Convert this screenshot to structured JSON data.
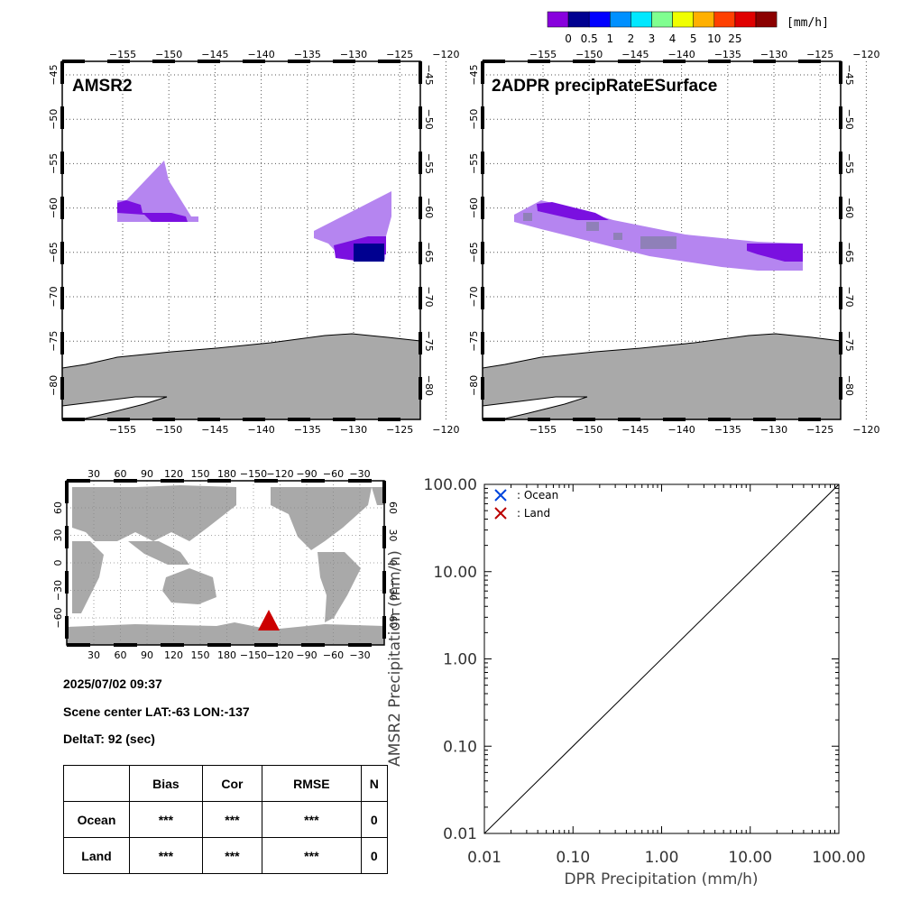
{
  "colorbar": {
    "unit": "[mm/h]",
    "colors": [
      "#8800dd",
      "#000090",
      "#0000ff",
      "#0090ff",
      "#00e8ff",
      "#80ff90",
      "#f0ff00",
      "#ffb000",
      "#ff4000",
      "#e00000",
      "#8b0000"
    ],
    "labels": [
      "0",
      "0.5",
      "1",
      "2",
      "3",
      "4",
      "5",
      "10",
      "25"
    ]
  },
  "maps": {
    "lon_ticks": [
      "−155",
      "−150",
      "−145",
      "−140",
      "−135",
      "−130",
      "−125",
      "−120"
    ],
    "lat_ticks": [
      "−45",
      "−50",
      "−55",
      "−60",
      "−65",
      "−70",
      "−75",
      "−80"
    ],
    "left_title": "AMSR2",
    "right_title": "2ADPR precipRateESurface"
  },
  "locator": {
    "top_ticks": [
      "30",
      "60",
      "90",
      "120",
      "150",
      "180",
      "−150",
      "−120",
      "−90",
      "−60",
      "−30"
    ],
    "bottom_ticks": [
      "30",
      "60",
      "90",
      "120",
      "150",
      "180",
      "−150",
      "−120",
      "−90",
      "−60",
      "−30"
    ],
    "lat_ticks": [
      "60",
      "30",
      "0",
      "−30",
      "−60"
    ],
    "marker_color": "#cc0000"
  },
  "info": {
    "datetime": "2025/07/02 09:37",
    "scene_center": "Scene center LAT:-63   LON:-137",
    "delta_t": "DeltaT:   92 (sec)"
  },
  "stats": {
    "headers": [
      "Bias",
      "Cor",
      "RMSE",
      "N"
    ],
    "rows": [
      {
        "label": "Ocean",
        "bias": "***",
        "cor": "***",
        "rmse": "***",
        "n": "0"
      },
      {
        "label": "Land",
        "bias": "***",
        "cor": "***",
        "rmse": "***",
        "n": "0"
      }
    ]
  },
  "chart_data": {
    "type": "scatter",
    "xlabel": "DPR Precipitation (mm/h)",
    "ylabel": "AMSR2 Precipitation (mm/h)",
    "xscale": "log",
    "yscale": "log",
    "xlim": [
      0.01,
      100
    ],
    "ylim": [
      0.01,
      100
    ],
    "x_ticks": [
      "0.01",
      "0.10",
      "1.00",
      "10.00",
      "100.00"
    ],
    "y_ticks": [
      "0.01",
      "0.10",
      "1.00",
      "10.00",
      "100.00"
    ],
    "legend_position": "top-left",
    "series": [
      {
        "name": ": Ocean",
        "marker": "x",
        "color": "#0044dd",
        "points": []
      },
      {
        "name": ": Land",
        "marker": "x",
        "color": "#bb0000",
        "points": []
      }
    ],
    "reference_line": "y = x"
  }
}
